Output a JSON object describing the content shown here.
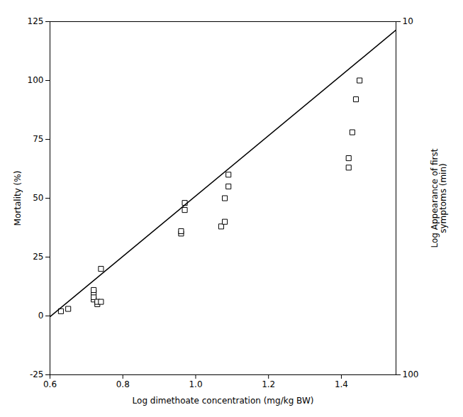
{
  "chart_data": {
    "type": "scatter",
    "xlabel": "Log dimethoate concentration (mg/kg BW)",
    "ylabel": "Mortality (%)",
    "y2label": "Log Appearance of first\nsymptoms (min)",
    "xlim": [
      0.6,
      1.55
    ],
    "xticks": [
      0.6,
      0.8,
      {
        "value": 1.0,
        "label": "1.0"
      },
      1.2,
      1.4
    ],
    "ylim": [
      -25,
      125
    ],
    "yticks": [
      -25,
      0,
      25,
      50,
      75,
      100,
      125
    ],
    "y2lim": [
      100,
      10
    ],
    "y2ticks": [
      10,
      100
    ],
    "log": "y2",
    "grid": false,
    "series": [
      {
        "type": "scatter",
        "marker": "square",
        "color": "black",
        "x": [
          0.63,
          0.65,
          0.72,
          0.72,
          0.72,
          0.72,
          0.73,
          0.73,
          0.74,
          0.74,
          0.96,
          0.96,
          0.97,
          0.97,
          1.07,
          1.08,
          1.08,
          1.09,
          1.09,
          1.42,
          1.42,
          1.43,
          1.44,
          1.45
        ],
        "values": [
          2,
          3,
          7,
          8,
          10,
          11,
          5,
          6,
          6,
          20,
          35,
          36,
          45,
          48,
          38,
          40,
          50,
          55,
          60,
          63,
          67,
          78,
          92,
          100
        ]
      },
      {
        "type": "line",
        "line_style": "solid",
        "color": "black",
        "x": [
          0.6,
          1.55
        ],
        "values": [
          -0.32,
          121.4225
        ]
      }
    ]
  }
}
